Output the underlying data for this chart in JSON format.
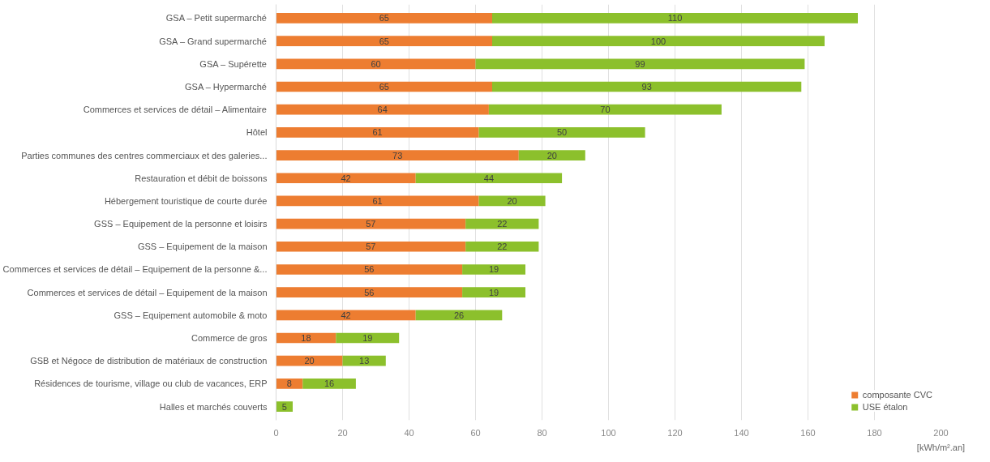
{
  "chart_data": {
    "type": "bar",
    "orientation": "horizontal",
    "stacked": true,
    "data_labels": true,
    "categories": [
      "GSA – Petit supermarché",
      "GSA – Grand supermarché",
      "GSA – Supérette",
      "GSA – Hypermarché",
      "Commerces et services de détail – Alimentaire",
      "Hôtel",
      "Parties communes des centres commerciaux et des galeries...",
      "Restauration et débit de boissons",
      "Hébergement touristique de courte durée",
      "GSS – Equipement de la personne et loisirs",
      "GSS – Equipement de la maison",
      "Commerces et services de détail – Equipement de la personne &...",
      "Commerces et services de détail – Equipement de la maison",
      "GSS – Equipement automobile & moto",
      "Commerce de gros",
      "GSB et Négoce de distribution de matériaux de construction",
      "Résidences de tourisme, village ou club de vacances, ERP",
      "Halles et marchés couverts"
    ],
    "series": [
      {
        "name": "composante CVC",
        "color": "#ed7d31",
        "values": [
          65,
          65,
          60,
          65,
          64,
          61,
          73,
          42,
          61,
          57,
          57,
          56,
          56,
          42,
          18,
          20,
          8,
          null
        ]
      },
      {
        "name": "USE étalon",
        "color": "#8cc02c",
        "values": [
          110,
          100,
          99,
          93,
          70,
          50,
          20,
          44,
          20,
          22,
          22,
          19,
          19,
          26,
          19,
          13,
          16,
          5
        ]
      }
    ],
    "xlim": [
      0,
      200
    ],
    "xticks": [
      0,
      20,
      40,
      60,
      80,
      100,
      120,
      140,
      160,
      180,
      200
    ],
    "xlabel": "[kWh/m².an]",
    "grid": "x",
    "legend": "bottom right"
  }
}
